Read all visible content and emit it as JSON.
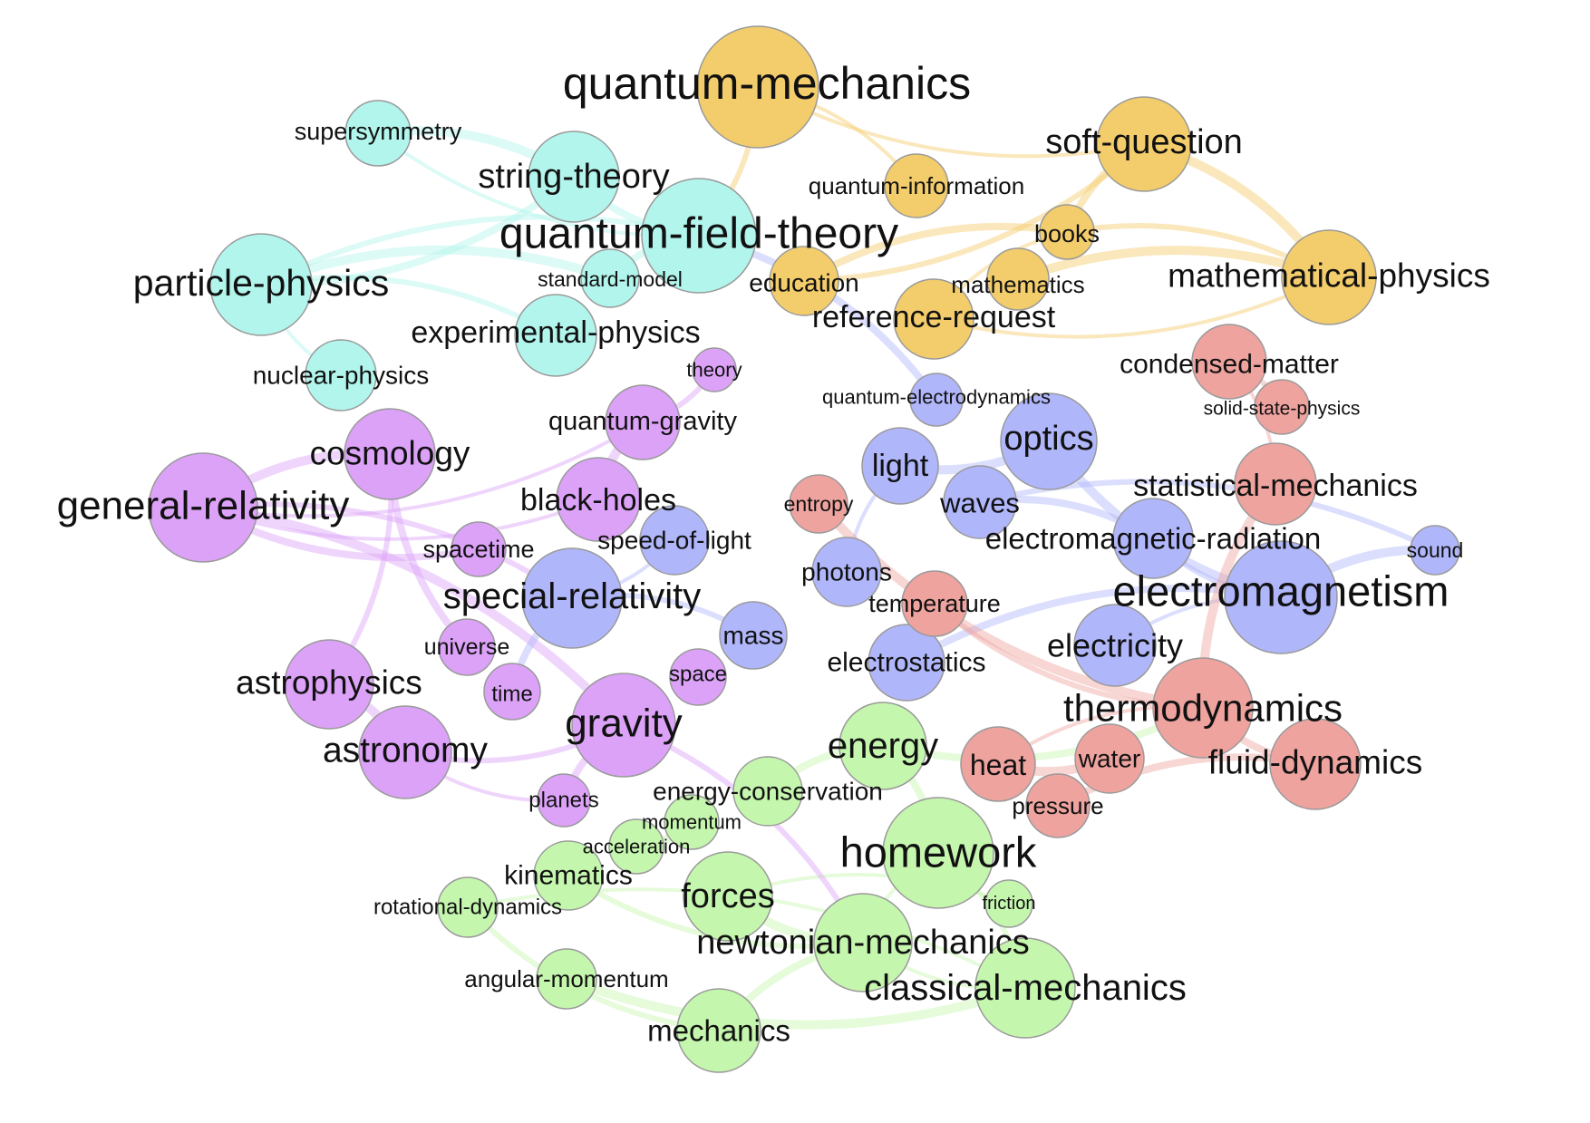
{
  "colors": {
    "particle": "#b2f5ec",
    "qm": "#f3cd6b",
    "relativity": "#dca2f8",
    "em": "#b0b6fa",
    "thermo": "#eea39f",
    "mechanics": "#c5f6ae"
  },
  "nodes": [
    {
      "id": "quantum-mechanics",
      "label": "quantum-mechanics",
      "group": "qm"
    },
    {
      "id": "soft-question",
      "label": "soft-question",
      "group": "qm"
    },
    {
      "id": "quantum-information",
      "label": "quantum-information",
      "group": "qm"
    },
    {
      "id": "books",
      "label": "books",
      "group": "qm"
    },
    {
      "id": "education",
      "label": "education",
      "group": "qm"
    },
    {
      "id": "mathematics",
      "label": "mathematics",
      "group": "qm"
    },
    {
      "id": "mathematical-physics",
      "label": "mathematical-physics",
      "group": "qm"
    },
    {
      "id": "reference-request",
      "label": "reference-request",
      "group": "qm"
    },
    {
      "id": "supersymmetry",
      "label": "supersymmetry",
      "group": "particle"
    },
    {
      "id": "string-theory",
      "label": "string-theory",
      "group": "particle"
    },
    {
      "id": "quantum-field-theory",
      "label": "quantum-field-theory",
      "group": "particle"
    },
    {
      "id": "particle-physics",
      "label": "particle-physics",
      "group": "particle"
    },
    {
      "id": "standard-model",
      "label": "standard-model",
      "group": "particle"
    },
    {
      "id": "experimental-physics",
      "label": "experimental-physics",
      "group": "particle"
    },
    {
      "id": "nuclear-physics",
      "label": "nuclear-physics",
      "group": "particle"
    },
    {
      "id": "theory",
      "label": "theory",
      "group": "relativity"
    },
    {
      "id": "quantum-gravity",
      "label": "quantum-gravity",
      "group": "relativity"
    },
    {
      "id": "cosmology",
      "label": "cosmology",
      "group": "relativity"
    },
    {
      "id": "general-relativity",
      "label": "general-relativity",
      "group": "relativity"
    },
    {
      "id": "black-holes",
      "label": "black-holes",
      "group": "relativity"
    },
    {
      "id": "spacetime",
      "label": "spacetime",
      "group": "relativity"
    },
    {
      "id": "universe",
      "label": "universe",
      "group": "relativity"
    },
    {
      "id": "astrophysics",
      "label": "astrophysics",
      "group": "relativity"
    },
    {
      "id": "time",
      "label": "time",
      "group": "relativity"
    },
    {
      "id": "space",
      "label": "space",
      "group": "relativity"
    },
    {
      "id": "gravity",
      "label": "gravity",
      "group": "relativity"
    },
    {
      "id": "astronomy",
      "label": "astronomy",
      "group": "relativity"
    },
    {
      "id": "planets",
      "label": "planets",
      "group": "relativity"
    },
    {
      "id": "quantum-electrodynamics",
      "label": "quantum-electrodynamics",
      "group": "em"
    },
    {
      "id": "optics",
      "label": "optics",
      "group": "em"
    },
    {
      "id": "light",
      "label": "light",
      "group": "em"
    },
    {
      "id": "waves",
      "label": "waves",
      "group": "em"
    },
    {
      "id": "speed-of-light",
      "label": "speed-of-light",
      "group": "em"
    },
    {
      "id": "special-relativity",
      "label": "special-relativity",
      "group": "em"
    },
    {
      "id": "photons",
      "label": "photons",
      "group": "em"
    },
    {
      "id": "electromagnetic-radiation",
      "label": "electromagnetic-radiation",
      "group": "em"
    },
    {
      "id": "sound",
      "label": "sound",
      "group": "em"
    },
    {
      "id": "electromagnetism",
      "label": "electromagnetism",
      "group": "em"
    },
    {
      "id": "mass",
      "label": "mass",
      "group": "em"
    },
    {
      "id": "electrostatics",
      "label": "electrostatics",
      "group": "em"
    },
    {
      "id": "electricity",
      "label": "electricity",
      "group": "em"
    },
    {
      "id": "condensed-matter",
      "label": "condensed-matter",
      "group": "thermo"
    },
    {
      "id": "solid-state-physics",
      "label": "solid-state-physics",
      "group": "thermo"
    },
    {
      "id": "statistical-mechanics",
      "label": "statistical-mechanics",
      "group": "thermo"
    },
    {
      "id": "entropy",
      "label": "entropy",
      "group": "thermo"
    },
    {
      "id": "temperature",
      "label": "temperature",
      "group": "thermo"
    },
    {
      "id": "thermodynamics",
      "label": "thermodynamics",
      "group": "thermo"
    },
    {
      "id": "heat",
      "label": "heat",
      "group": "thermo"
    },
    {
      "id": "water",
      "label": "water",
      "group": "thermo"
    },
    {
      "id": "fluid-dynamics",
      "label": "fluid-dynamics",
      "group": "thermo"
    },
    {
      "id": "pressure",
      "label": "pressure",
      "group": "thermo"
    },
    {
      "id": "energy",
      "label": "energy",
      "group": "mechanics"
    },
    {
      "id": "energy-conservation",
      "label": "energy-conservation",
      "group": "mechanics"
    },
    {
      "id": "momentum",
      "label": "momentum",
      "group": "mechanics"
    },
    {
      "id": "acceleration",
      "label": "acceleration",
      "group": "mechanics"
    },
    {
      "id": "kinematics",
      "label": "kinematics",
      "group": "mechanics"
    },
    {
      "id": "rotational-dynamics",
      "label": "rotational-dynamics",
      "group": "mechanics"
    },
    {
      "id": "homework",
      "label": "homework",
      "group": "mechanics"
    },
    {
      "id": "friction",
      "label": "friction",
      "group": "mechanics"
    },
    {
      "id": "forces",
      "label": "forces",
      "group": "mechanics"
    },
    {
      "id": "newtonian-mechanics",
      "label": "newtonian-mechanics",
      "group": "mechanics"
    },
    {
      "id": "classical-mechanics",
      "label": "classical-mechanics",
      "group": "mechanics"
    },
    {
      "id": "angular-momentum",
      "label": "angular-momentum",
      "group": "mechanics"
    },
    {
      "id": "mechanics",
      "label": "mechanics",
      "group": "mechanics"
    }
  ],
  "edges": [
    {
      "from": "quantum-mechanics",
      "to": "soft-question"
    },
    {
      "from": "quantum-mechanics",
      "to": "quantum-field-theory"
    },
    {
      "from": "soft-question",
      "to": "books"
    },
    {
      "from": "soft-question",
      "to": "mathematical-physics"
    },
    {
      "from": "books",
      "to": "reference-request"
    },
    {
      "from": "books",
      "to": "mathematical-physics"
    },
    {
      "from": "books",
      "to": "education"
    },
    {
      "from": "mathematics",
      "to": "mathematical-physics"
    },
    {
      "from": "reference-request",
      "to": "mathematical-physics"
    },
    {
      "from": "soft-question",
      "to": "education"
    },
    {
      "from": "string-theory",
      "to": "quantum-field-theory"
    },
    {
      "from": "supersymmetry",
      "to": "string-theory"
    },
    {
      "from": "supersymmetry",
      "to": "quantum-field-theory"
    },
    {
      "from": "particle-physics",
      "to": "quantum-field-theory"
    },
    {
      "from": "particle-physics",
      "to": "string-theory"
    },
    {
      "from": "particle-physics",
      "to": "standard-model"
    },
    {
      "from": "particle-physics",
      "to": "nuclear-physics"
    },
    {
      "from": "particle-physics",
      "to": "experimental-physics"
    },
    {
      "from": "quantum-field-theory",
      "to": "standard-model"
    },
    {
      "from": "general-relativity",
      "to": "cosmology"
    },
    {
      "from": "general-relativity",
      "to": "black-holes"
    },
    {
      "from": "general-relativity",
      "to": "special-relativity"
    },
    {
      "from": "general-relativity",
      "to": "spacetime"
    },
    {
      "from": "general-relativity",
      "to": "gravity"
    },
    {
      "from": "general-relativity",
      "to": "quantum-gravity"
    },
    {
      "from": "cosmology",
      "to": "astrophysics"
    },
    {
      "from": "cosmology",
      "to": "universe"
    },
    {
      "from": "astrophysics",
      "to": "astronomy"
    },
    {
      "from": "astronomy",
      "to": "planets"
    },
    {
      "from": "gravity",
      "to": "astronomy"
    },
    {
      "from": "gravity",
      "to": "planets"
    },
    {
      "from": "black-holes",
      "to": "quantum-gravity"
    },
    {
      "from": "special-relativity",
      "to": "speed-of-light"
    },
    {
      "from": "special-relativity",
      "to": "mass"
    },
    {
      "from": "special-relativity",
      "to": "time"
    },
    {
      "from": "electromagnetism",
      "to": "optics"
    },
    {
      "from": "electromagnetism",
      "to": "electricity"
    },
    {
      "from": "electromagnetism",
      "to": "electromagnetic-radiation"
    },
    {
      "from": "electromagnetism",
      "to": "electrostatics"
    },
    {
      "from": "optics",
      "to": "light"
    },
    {
      "from": "light",
      "to": "photons"
    },
    {
      "from": "waves",
      "to": "sound"
    },
    {
      "from": "electromagnetic-radiation",
      "to": "waves"
    },
    {
      "from": "thermodynamics",
      "to": "statistical-mechanics"
    },
    {
      "from": "thermodynamics",
      "to": "heat"
    },
    {
      "from": "thermodynamics",
      "to": "temperature"
    },
    {
      "from": "thermodynamics",
      "to": "fluid-dynamics"
    },
    {
      "from": "thermodynamics",
      "to": "entropy"
    },
    {
      "from": "statistical-mechanics",
      "to": "condensed-matter"
    },
    {
      "from": "condensed-matter",
      "to": "solid-state-physics"
    },
    {
      "from": "fluid-dynamics",
      "to": "pressure"
    },
    {
      "from": "water",
      "to": "heat"
    },
    {
      "from": "homework",
      "to": "newtonian-mechanics"
    },
    {
      "from": "homework",
      "to": "classical-mechanics"
    },
    {
      "from": "homework",
      "to": "energy"
    },
    {
      "from": "newtonian-mechanics",
      "to": "forces"
    },
    {
      "from": "newtonian-mechanics",
      "to": "classical-mechanics"
    },
    {
      "from": "newtonian-mechanics",
      "to": "kinematics"
    },
    {
      "from": "newtonian-mechanics",
      "to": "mechanics"
    },
    {
      "from": "classical-mechanics",
      "to": "angular-momentum"
    },
    {
      "from": "classical-mechanics",
      "to": "rotational-dynamics"
    },
    {
      "from": "mechanics",
      "to": "rotational-dynamics"
    },
    {
      "from": "energy",
      "to": "energy-conservation"
    },
    {
      "from": "momentum",
      "to": "acceleration"
    },
    {
      "from": "friction",
      "to": "forces"
    },
    {
      "from": "gravity",
      "to": "newtonian-mechanics"
    },
    {
      "from": "energy",
      "to": "thermodynamics"
    },
    {
      "from": "electromagnetism",
      "to": "sound"
    },
    {
      "from": "quantum-information",
      "to": "quantum-mechanics"
    },
    {
      "from": "theory",
      "to": "quantum-gravity"
    },
    {
      "from": "quantum-electrodynamics",
      "to": "quantum-field-theory"
    }
  ]
}
